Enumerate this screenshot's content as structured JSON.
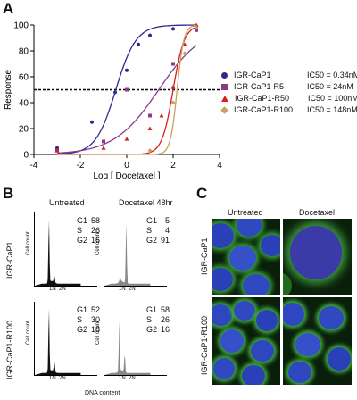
{
  "panels": {
    "a": "A",
    "b": "B",
    "c": "C"
  },
  "chart_data": {
    "type": "scatter",
    "xlabel": "Log [ Docetaxel ]",
    "ylabel": "Response",
    "xlim": [
      -4,
      4
    ],
    "ylim": [
      0,
      100
    ],
    "xticks": [
      "-4",
      "-2",
      "0",
      "2",
      "4"
    ],
    "yticks": [
      "0",
      "20",
      "40",
      "60",
      "80",
      "100"
    ],
    "reference_line": 50,
    "legend_position": "right",
    "series": [
      {
        "name": "IGR-CaP1",
        "ic50_label": "IC50 = 0.34nM",
        "marker": "circle",
        "color": "#2e2a8f",
        "logIC50": -0.47,
        "hill": 1.0,
        "points": [
          [
            -3,
            5
          ],
          [
            -1.5,
            25
          ],
          [
            -0.5,
            48
          ],
          [
            0,
            65
          ],
          [
            0.5,
            85
          ],
          [
            1,
            92
          ],
          [
            2,
            97
          ],
          [
            3,
            99
          ]
        ]
      },
      {
        "name": "IGR-CaP1-R5",
        "ic50_label": "IC50 = 24nM",
        "marker": "square",
        "color": "#8b3a8b",
        "logIC50": 1.38,
        "hill": 0.45,
        "points": [
          [
            -3,
            3
          ],
          [
            -1,
            10
          ],
          [
            0,
            50
          ],
          [
            1,
            30
          ],
          [
            2,
            70
          ],
          [
            3,
            96
          ]
        ]
      },
      {
        "name": "IGR-CaP1-R50",
        "ic50_label": "IC50 = 100nM",
        "marker": "triangle",
        "color": "#d42020",
        "logIC50": 2.0,
        "hill": 1.8,
        "points": [
          [
            -3,
            3
          ],
          [
            -1,
            5
          ],
          [
            0,
            12
          ],
          [
            1,
            20
          ],
          [
            1.5,
            30
          ],
          [
            2,
            52
          ],
          [
            2.5,
            85
          ],
          [
            3,
            100
          ]
        ]
      },
      {
        "name": "IGR-CaP1-R100",
        "ic50_label": "IC50 = 148nM",
        "marker": "diamond",
        "color": "#c8a060",
        "logIC50": 2.17,
        "hill": 3.0,
        "points": [
          [
            1,
            3
          ],
          [
            2,
            40
          ],
          [
            2.5,
            78
          ],
          [
            3,
            98
          ]
        ]
      }
    ]
  },
  "flow": {
    "col_headers": [
      "Untreated",
      "Docetaxel 48hr"
    ],
    "row_labels": [
      "IGR-CaP1",
      "IGR-CaP1-R100"
    ],
    "axis_ylabel": "Cell count",
    "axis_xlabel": "DNA content",
    "tick_1n": "1N",
    "tick_2n": "2N",
    "stats": [
      [
        {
          "G1": "58",
          "S": "26",
          "G2": "16"
        },
        {
          "G1": "5",
          "S": "4",
          "G2": "91"
        }
      ],
      [
        {
          "G1": "52",
          "S": "30",
          "G2": "18"
        },
        {
          "G1": "58",
          "S": "26",
          "G2": "16"
        }
      ]
    ],
    "phase_labels": {
      "g1": "G1",
      "s": "S",
      "g2": "G2"
    },
    "fill_colors": [
      "#111111",
      "#888888"
    ]
  },
  "microscopy": {
    "col_headers": [
      "Untreated",
      "Docetaxel"
    ],
    "row_labels": [
      "IGR-CaP1",
      "IGR-CaP1-R100"
    ]
  }
}
